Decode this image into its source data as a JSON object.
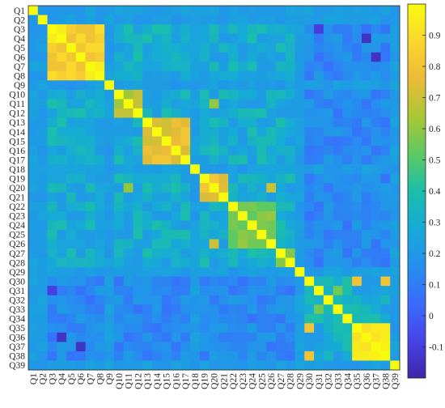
{
  "chart_data": {
    "type": "heatmap",
    "title": "",
    "xlabel": "",
    "ylabel": "",
    "categories": [
      "Q1",
      "Q2",
      "Q3",
      "Q4",
      "Q5",
      "Q6",
      "Q7",
      "Q8",
      "Q9",
      "Q10",
      "Q11",
      "Q12",
      "Q13",
      "Q14",
      "Q15",
      "Q16",
      "Q17",
      "Q18",
      "Q19",
      "Q20",
      "Q21",
      "Q22",
      "Q23",
      "Q24",
      "Q25",
      "Q26",
      "Q27",
      "Q28",
      "Q29",
      "Q30",
      "Q31",
      "Q32",
      "Q33",
      "Q34",
      "Q35",
      "Q36",
      "Q37",
      "Q38",
      "Q39"
    ],
    "colormap": "parula",
    "value_range": [
      -0.2,
      1.0
    ],
    "colorbar": {
      "ticks": [
        -0.1,
        0,
        0.1,
        0.2,
        0.3,
        0.4,
        0.5,
        0.6,
        0.7,
        0.8,
        0.9
      ],
      "tick_labels": [
        "-0.1",
        "0",
        "0.1",
        "0.2",
        "0.3",
        "0.4",
        "0.5",
        "0.6",
        "0.7",
        "0.8",
        "0.9"
      ],
      "placement": "right"
    },
    "blocks": [
      {
        "from": "Q3",
        "to": "Q8",
        "value": 0.85
      },
      {
        "from": "Q10",
        "to": "Q12",
        "value": 0.68
      },
      {
        "from": "Q13",
        "to": "Q17",
        "value": 0.76
      },
      {
        "from": "Q19",
        "to": "Q21",
        "value": 0.78
      },
      {
        "from": "Q22",
        "to": "Q26",
        "value": 0.55
      },
      {
        "from": "Q27",
        "to": "Q28",
        "value": 0.62
      },
      {
        "from": "Q30",
        "to": "Q34",
        "value": 0.35
      },
      {
        "from": "Q35",
        "to": "Q38",
        "value": 0.95
      }
    ],
    "notable_pairs": [
      {
        "row": "Q3",
        "col": "Q4",
        "value": 0.95
      },
      {
        "row": "Q7",
        "col": "Q8",
        "value": 0.95
      },
      {
        "row": "Q30",
        "col": "Q35",
        "value": 0.8
      },
      {
        "row": "Q30",
        "col": "Q38",
        "value": 0.8
      },
      {
        "row": "Q31",
        "col": "Q33",
        "value": 0.55
      },
      {
        "row": "Q20",
        "col": "Q26",
        "value": 0.7
      },
      {
        "row": "Q11",
        "col": "Q20",
        "value": 0.6
      },
      {
        "row": "Q4",
        "col": "Q36",
        "value": -0.15
      },
      {
        "row": "Q6",
        "col": "Q37",
        "value": -0.15
      },
      {
        "row": "Q3",
        "col": "Q31",
        "value": -0.1
      }
    ],
    "diagonal_value": 1.0
  }
}
